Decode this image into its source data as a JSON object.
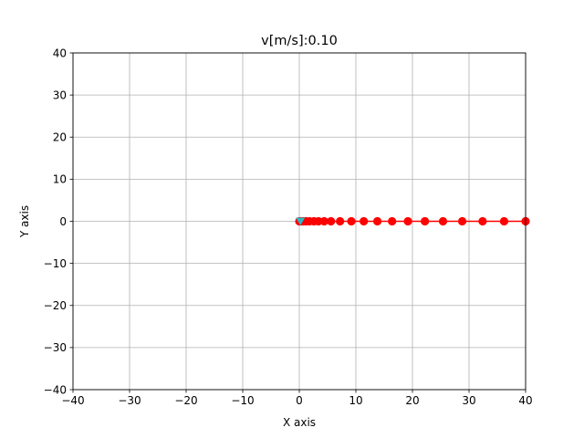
{
  "chart_data": {
    "type": "line",
    "title": "v[m/s]:0.10",
    "xlabel": "X axis",
    "ylabel": "Y axis",
    "xlim": [
      -40,
      40
    ],
    "ylim": [
      -40,
      40
    ],
    "xticks": [
      -40,
      -30,
      -20,
      -10,
      0,
      10,
      20,
      30,
      40
    ],
    "yticks": [
      -40,
      -30,
      -20,
      -10,
      0,
      10,
      20,
      30,
      40
    ],
    "xtick_labels": [
      "−40",
      "−30",
      "−20",
      "−10",
      "0",
      "10",
      "20",
      "30",
      "40"
    ],
    "ytick_labels": [
      "−40",
      "−30",
      "−20",
      "−10",
      "0",
      "10",
      "20",
      "30",
      "40"
    ],
    "grid": true,
    "series": [
      {
        "color": "#ff0000",
        "marker": "circle",
        "x": [
          0,
          0.3,
          0.7,
          1.2,
          1.8,
          2.6,
          3.4,
          4.4,
          5.6,
          7.2,
          9.2,
          11.4,
          13.8,
          16.4,
          19.2,
          22.2,
          25.4,
          28.8,
          32.4,
          36.2,
          40
        ],
        "y": [
          0,
          0,
          0,
          0,
          0,
          0,
          0,
          0,
          0,
          0,
          0,
          0,
          0,
          0,
          0,
          0,
          0,
          0,
          0,
          0,
          0
        ]
      },
      {
        "color": "#2bb7c4",
        "marker": "triangle-down",
        "x": [
          0.2
        ],
        "y": [
          0
        ]
      }
    ]
  }
}
